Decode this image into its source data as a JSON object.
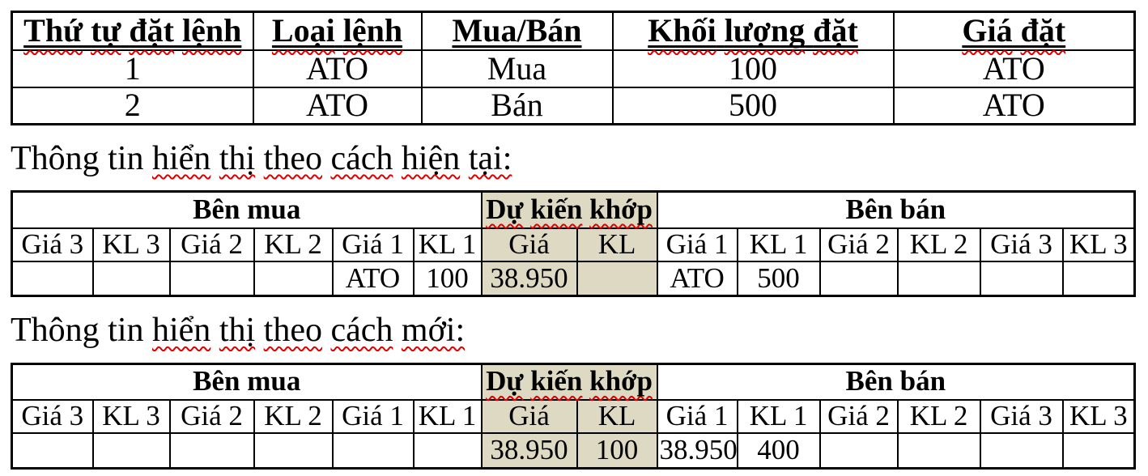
{
  "colors": {
    "highlight": "#ddd9c3",
    "squiggle": "#e00000",
    "border": "#000000",
    "text": "#000000",
    "background": "#ffffff"
  },
  "order_table": {
    "headers": [
      {
        "words": [
          [
            "Thứ",
            1
          ],
          [
            "tự",
            1
          ],
          [
            "đặt",
            1
          ],
          [
            "lệnh",
            1
          ]
        ]
      },
      {
        "words": [
          [
            "Loại",
            1
          ],
          [
            "lệnh",
            1
          ]
        ]
      },
      {
        "words": [
          [
            "Mua/Bán",
            0
          ]
        ]
      },
      {
        "words": [
          [
            "Khối",
            1
          ],
          [
            "lượng",
            1
          ],
          [
            "đặt",
            1
          ]
        ]
      },
      {
        "words": [
          [
            "Giá",
            1
          ],
          [
            "đặt",
            1
          ]
        ]
      }
    ],
    "rows": [
      [
        "1",
        "ATO",
        "Mua",
        "100",
        "ATO"
      ],
      [
        "2",
        "ATO",
        "Bán",
        "500",
        "ATO"
      ]
    ]
  },
  "sections": {
    "current_label_words": [
      [
        "Thông",
        0
      ],
      [
        "tin",
        0
      ],
      [
        "hiển",
        1
      ],
      [
        "thị",
        1
      ],
      [
        "theo",
        1
      ],
      [
        "cách",
        1
      ],
      [
        "hiện",
        1
      ],
      [
        "tại:",
        1
      ]
    ],
    "new_label_words": [
      [
        "Thông",
        0
      ],
      [
        "tin",
        0
      ],
      [
        "hiển",
        1
      ],
      [
        "thị",
        1
      ],
      [
        "theo",
        1
      ],
      [
        "cách",
        1
      ],
      [
        "mới:",
        1
      ]
    ]
  },
  "board_headers": {
    "buy": "Bên mua",
    "match_words": [
      [
        "Dự",
        1
      ],
      [
        "kiến",
        1
      ],
      [
        "khớp",
        1
      ]
    ],
    "sell": "Bên bán",
    "buy_cols": [
      "Giá 3",
      "KL 3",
      "Giá 2",
      "KL 2",
      "Giá 1",
      "KL 1"
    ],
    "match_cols": [
      "Giá",
      "KL"
    ],
    "sell_cols": [
      "Giá 1",
      "KL 1",
      "Giá 2",
      "KL 2",
      "Giá 3",
      "KL 3"
    ]
  },
  "board_current": {
    "row": [
      "",
      "",
      "",
      "",
      "ATO",
      "100",
      "38.950",
      "",
      "ATO",
      "500",
      "",
      "",
      "",
      ""
    ]
  },
  "board_new": {
    "row": [
      "",
      "",
      "",
      "",
      "",
      "",
      "38.950",
      "100",
      "38.950",
      "400",
      "",
      "",
      "",
      ""
    ]
  }
}
